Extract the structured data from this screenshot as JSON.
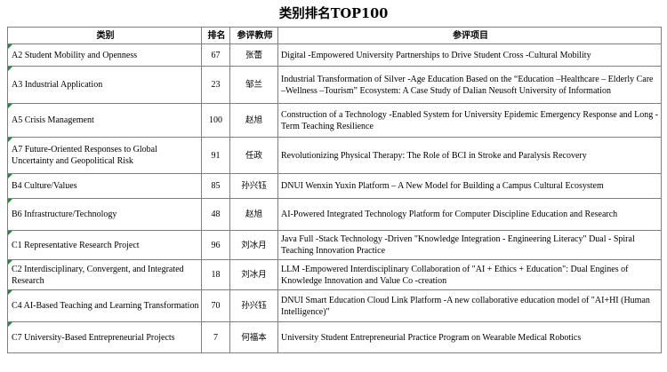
{
  "title": "类别排名TOP100",
  "headers": {
    "category": "类别",
    "rank": "排名",
    "teacher": "参评教师",
    "project": "参评项目"
  },
  "rows": [
    {
      "category": "A2 Student Mobility and Openness",
      "rank": "67",
      "teacher": "张蕾",
      "project": "Digital -Empowered University Partnerships to Drive Student Cross -Cultural Mobility"
    },
    {
      "category": "A3 Industrial Application",
      "rank": "23",
      "teacher": "邹兰",
      "project": "Industrial Transformation of Silver -Age Education Based on the “Education –Healthcare – Elderly Care –Wellness –Tourism” Ecosystem: A Case Study of Dalian Neusoft University of Information"
    },
    {
      "category": "A5 Crisis Management",
      "rank": "100",
      "teacher": "赵旭",
      "project": "Construction of a Technology -Enabled System for University Epidemic Emergency Response and Long -Term Teaching Resilience"
    },
    {
      "category": "A7 Future-Oriented Responses to Global Uncertainty and Geopolitical Risk",
      "rank": "91",
      "teacher": "任政",
      "project": "Revolutionizing Physical Therapy: The Role of BCI in Stroke and Paralysis Recovery"
    },
    {
      "category": "B4 Culture/Values",
      "rank": "85",
      "teacher": "孙兴钰",
      "project": "DNUI Wenxin Yuxin Platform – A New Model for Building a Campus Cultural Ecosystem"
    },
    {
      "category": "B6 Infrastructure/Technology",
      "rank": "48",
      "teacher": "赵旭",
      "project": "AI-Powered Integrated Technology Platform for Computer Discipline Education and Research"
    },
    {
      "category": "C1 Representative Research Project",
      "rank": "96",
      "teacher": "刘冰月",
      "project": "Java Full -Stack Technology -Driven \"Knowledge Integration - Engineering Literacy\" Dual - Spiral Teaching Innovation Practice"
    },
    {
      "category": "C2 Interdisciplinary, Convergent, and Integrated Research",
      "rank": "18",
      "teacher": "刘冰月",
      "project": "LLM -Empowered Interdisciplinary Collaboration of \"AI + Ethics + Education\": Dual Engines of Knowledge Innovation and Value Co -creation"
    },
    {
      "category": "C4 AI-Based Teaching and Learning Transformation",
      "rank": "70",
      "teacher": "孙兴钰",
      "project": "DNUI Smart Education Cloud Link Platform -A new collaborative education model of \"AI+HI (Human Intelligence)\""
    },
    {
      "category": "C7 University-Based Entrepreneurial Projects",
      "rank": "7",
      "teacher": "何福本",
      "project": "University Student Entrepreneurial Practice Program on Wearable Medical Robotics"
    }
  ]
}
